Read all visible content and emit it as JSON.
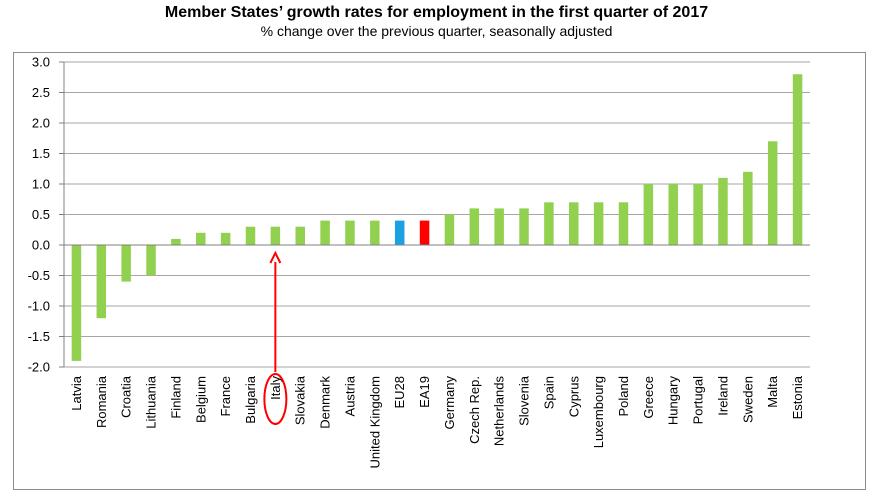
{
  "chart_data": {
    "type": "bar",
    "title": "Member States’ growth rates for employment in the first quarter of 2017",
    "subtitle": "% change over the previous quarter, seasonally adjusted",
    "xlabel": "",
    "ylabel": "",
    "ylim": [
      -2.0,
      3.0
    ],
    "yticks": [
      "3.0",
      "2.5",
      "2.0",
      "1.5",
      "1.0",
      "0.5",
      "0.0",
      "-0.5",
      "-1.0",
      "-1.5",
      "-2.0"
    ],
    "grid": true,
    "categories": [
      "Latvia",
      "Romania",
      "Croatia",
      "Lithuania",
      "Finland",
      "Belgium",
      "France",
      "Bulgaria",
      "Italy",
      "Slovakia",
      "Denmark",
      "Austria",
      "United Kingdom",
      "EU28",
      "EA19",
      "Germany",
      "Czech Rep.",
      "Netherlands",
      "Slovenia",
      "Spain",
      "Cyprus",
      "Luxembourg",
      "Poland",
      "Greece",
      "Hungary",
      "Portugal",
      "Ireland",
      "Sweden",
      "Malta",
      "Estonia"
    ],
    "values": [
      -1.9,
      -1.2,
      -0.6,
      -0.5,
      0.1,
      0.2,
      0.2,
      0.3,
      0.3,
      0.3,
      0.4,
      0.4,
      0.4,
      0.4,
      0.4,
      0.5,
      0.6,
      0.6,
      0.6,
      0.7,
      0.7,
      0.7,
      0.7,
      1.0,
      1.0,
      1.0,
      1.1,
      1.2,
      1.7,
      2.8
    ],
    "colors": {
      "default": "#92d050",
      "EU28": "#1ba1e2",
      "EA19": "#ff0000"
    },
    "highlight": {
      "category": "Italy",
      "color": "#ff0000"
    }
  }
}
